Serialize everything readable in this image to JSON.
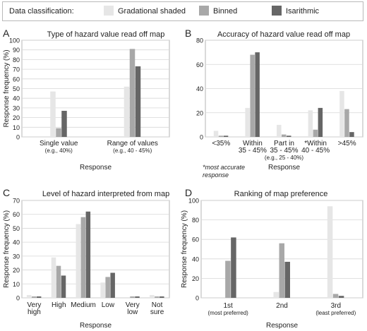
{
  "legend": {
    "title": "Data classification:",
    "items": [
      {
        "label": "Gradational shaded",
        "color": "#e6e6e6"
      },
      {
        "label": "Binned",
        "color": "#a8a8a8"
      },
      {
        "label": "Isarithmic",
        "color": "#666666"
      }
    ]
  },
  "chart_data": [
    {
      "type": "bar",
      "letter": "A",
      "title": "Type of hazard value read off map",
      "ylabel": "Response frequency (%)",
      "xlabel": "Response",
      "ylim": [
        0,
        100
      ],
      "yticks": [
        0,
        10,
        20,
        30,
        40,
        50,
        60,
        70,
        80,
        90,
        100
      ],
      "grid": true,
      "categories": [
        {
          "label": "Single value",
          "sub": "(e.g., 40%)"
        },
        {
          "label": "Range of values",
          "sub": "(e.g., 40 - 45%)"
        }
      ],
      "series": [
        {
          "name": "Gradational shaded",
          "values": [
            47,
            52
          ]
        },
        {
          "name": "Binned",
          "values": [
            9,
            91
          ]
        },
        {
          "name": "Isarithmic",
          "values": [
            27,
            73
          ]
        }
      ]
    },
    {
      "type": "bar",
      "letter": "B",
      "title": "Accuracy of hazard value read off map",
      "ylabel": "",
      "xlabel": "Response",
      "ylim": [
        0,
        80
      ],
      "yticks": [
        0,
        20,
        40,
        60,
        80
      ],
      "grid": true,
      "note": [
        "*most accurate",
        "response"
      ],
      "categories": [
        {
          "label": "<35%"
        },
        {
          "label": "Within",
          "label2": "35 - 45%"
        },
        {
          "label": "Part in",
          "label2": "35 - 45%",
          "sub": "(e.g., 25 - 40%)"
        },
        {
          "label": "*Within",
          "label2": "40 - 45%"
        },
        {
          "label": ">45%"
        }
      ],
      "series": [
        {
          "name": "Gradational shaded",
          "values": [
            5,
            24,
            10,
            22,
            38
          ]
        },
        {
          "name": "Binned",
          "values": [
            1,
            68,
            2,
            6,
            23
          ]
        },
        {
          "name": "Isarithmic",
          "values": [
            1,
            70,
            1,
            24,
            4
          ]
        }
      ]
    },
    {
      "type": "bar",
      "letter": "C",
      "title": "Level of hazard interpreted from map",
      "ylabel": "Response frequency (%)",
      "xlabel": "Response",
      "ylim": [
        0,
        70
      ],
      "yticks": [
        0,
        10,
        20,
        30,
        40,
        50,
        60,
        70
      ],
      "grid": true,
      "categories": [
        {
          "label": "Very",
          "label2": "high"
        },
        {
          "label": "High"
        },
        {
          "label": "Medium"
        },
        {
          "label": "Low"
        },
        {
          "label": "Very",
          "label2": "low"
        },
        {
          "label": "Not",
          "label2": "sure"
        }
      ],
      "series": [
        {
          "name": "Gradational shaded",
          "values": [
            2,
            29,
            53,
            11,
            0,
            2
          ]
        },
        {
          "name": "Binned",
          "values": [
            1,
            23,
            58,
            15,
            1,
            1
          ]
        },
        {
          "name": "Isarithmic",
          "values": [
            1,
            16,
            62,
            18,
            1,
            1
          ]
        }
      ]
    },
    {
      "type": "bar",
      "letter": "D",
      "title": "Ranking of map preference",
      "ylabel": "Response frequency (%)",
      "xlabel": "Response",
      "ylim": [
        0,
        100
      ],
      "yticks": [
        0,
        20,
        40,
        60,
        80,
        100
      ],
      "grid": true,
      "categories": [
        {
          "label": "1st",
          "sub": "(most preferred)"
        },
        {
          "label": "2nd"
        },
        {
          "label": "3rd",
          "sub": "(least preferred)"
        }
      ],
      "series": [
        {
          "name": "Gradational shaded",
          "values": [
            0,
            6,
            94
          ]
        },
        {
          "name": "Binned",
          "values": [
            38,
            56,
            4
          ]
        },
        {
          "name": "Isarithmic",
          "values": [
            62,
            37,
            2
          ]
        }
      ]
    }
  ]
}
